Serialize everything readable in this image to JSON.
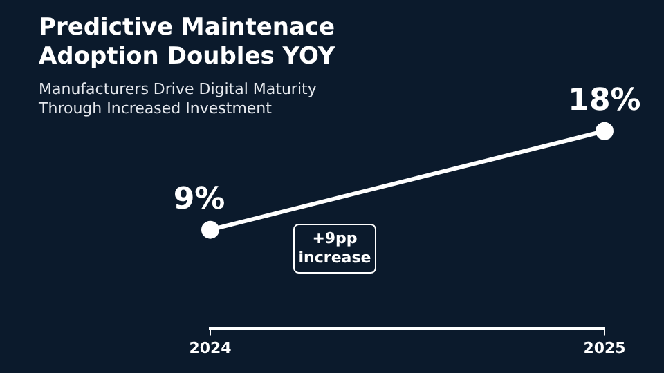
{
  "chart_data": {
    "type": "line",
    "title": "Predictive Maintenace Adoption Doubles YOY",
    "subtitle": "Manufacturers Drive Digital Maturity Through Increased Investment",
    "categories": [
      "2024",
      "2025"
    ],
    "values": [
      9,
      18
    ],
    "color": "#ffffff",
    "value_labels": [
      "9%",
      "18%"
    ],
    "marker": "circle",
    "line_style": "solid",
    "grid": false,
    "legend": false,
    "tick_labels": "x",
    "annotations": [
      "+9pp increase"
    ]
  }
}
